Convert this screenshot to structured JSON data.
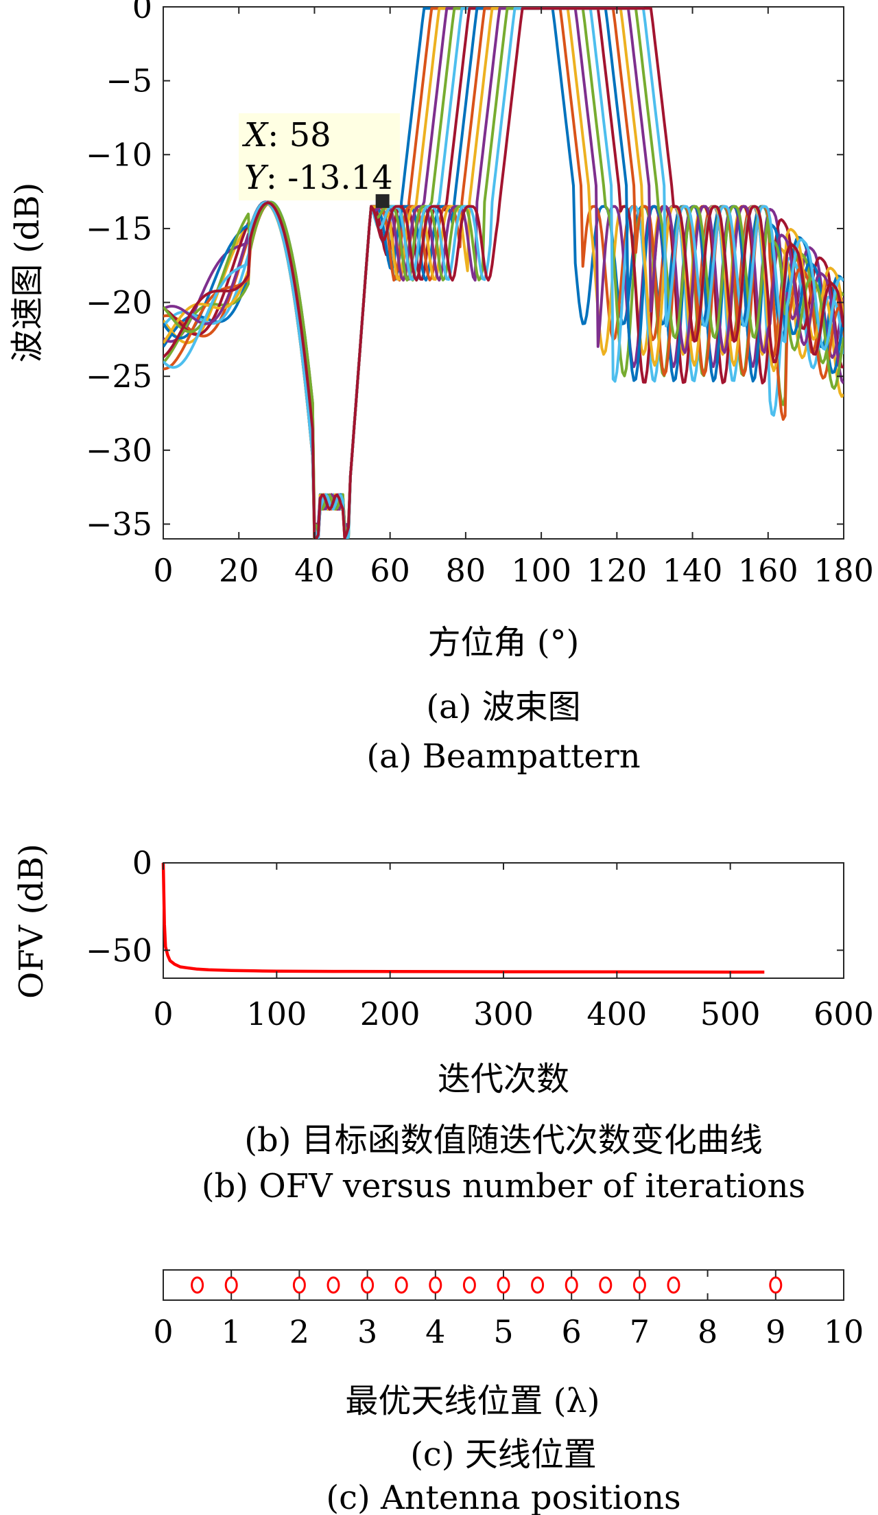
{
  "panels": {
    "a": {
      "caption_zh": "(a) 波束图",
      "caption_en": "(a) Beampattern"
    },
    "b": {
      "caption_zh": "(b) 目标函数值随迭代次数变化曲线",
      "caption_en": "(b) OFV versus number of iterations"
    },
    "c": {
      "caption_zh": "(c) 天线位置",
      "caption_en": "(c) Antenna positions"
    }
  },
  "chart_data": [
    {
      "type": "line",
      "xlabel": "方位角 (°)",
      "ylabel": "波速图 (dB)",
      "xlim": [
        0,
        180
      ],
      "ylim": [
        -36,
        0
      ],
      "xticks": [
        0,
        20,
        40,
        60,
        80,
        100,
        120,
        140,
        160,
        180
      ],
      "yticks": [
        0,
        -5,
        -10,
        -15,
        -20,
        -25,
        -30,
        -35
      ],
      "grid": false,
      "colors": [
        "#0072BD",
        "#D95319",
        "#EDB120",
        "#7E2F8E",
        "#77AC30",
        "#4DBEEE",
        "#A2142F"
      ],
      "sweep": {
        "count": 14,
        "mainlobe_start_first": 66,
        "mainlobe_start_step": 2,
        "mainlobe_width": 40,
        "notch": [
          40,
          49
        ],
        "notch_level": -33.5,
        "sidelobe_level": -13.2
      },
      "datatip": {
        "x": 58,
        "y": -13.14,
        "x_label": "X",
        "y_label": "Y",
        "x_text": ": 58",
        "y_text": ": -13.14"
      }
    },
    {
      "type": "line",
      "xlabel": "迭代次数",
      "ylabel": "OFV (dB)",
      "xlim": [
        0,
        600
      ],
      "ylim": [
        -66,
        0
      ],
      "xticks": [
        0,
        100,
        200,
        300,
        400,
        500,
        600
      ],
      "yticks": [
        0,
        -50
      ],
      "color": "#ff0000",
      "series": [
        {
          "x": [
            0,
            1,
            2,
            4,
            6,
            10,
            15,
            20,
            30,
            40,
            60,
            80,
            100,
            150,
            200,
            300,
            400,
            500,
            530
          ],
          "values": [
            0,
            -35,
            -48,
            -53,
            -56,
            -58,
            -59.5,
            -60,
            -60.8,
            -61.2,
            -61.6,
            -61.8,
            -62,
            -62.1,
            -62.2,
            -62.3,
            -62.4,
            -62.5,
            -62.5
          ]
        }
      ]
    },
    {
      "type": "scatter",
      "xlabel": "最优天线位置 (λ)",
      "xlim": [
        0,
        10
      ],
      "xticks": [
        0,
        1,
        2,
        3,
        4,
        5,
        6,
        7,
        8,
        9,
        10
      ],
      "marker": "circle",
      "color": "#ff0000",
      "x": [
        0.5,
        1,
        2,
        2.5,
        3,
        3.5,
        4,
        4.5,
        5,
        5.5,
        6,
        6.5,
        7,
        7.5,
        9
      ]
    }
  ]
}
